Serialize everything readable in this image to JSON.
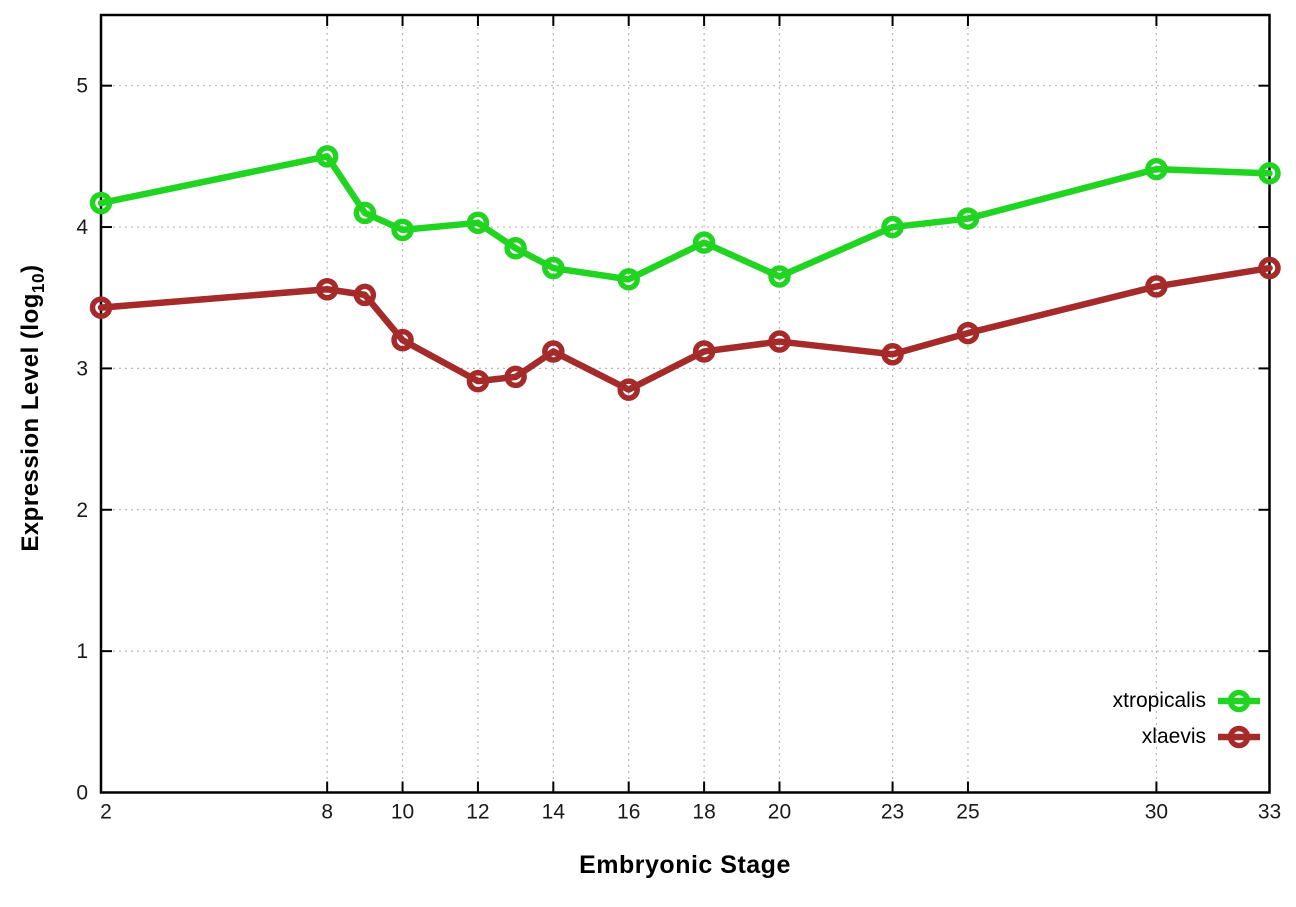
{
  "chart_data": {
    "type": "line",
    "title": "",
    "xlabel": "Embryonic Stage",
    "ylabel": "Expression Level (log10)",
    "ylabel_parts": {
      "pre": "Expression Level (log",
      "sub": "10",
      "post": ")"
    },
    "x": [
      2,
      8,
      9,
      10,
      12,
      13,
      14,
      16,
      18,
      20,
      23,
      25,
      30,
      33
    ],
    "series": [
      {
        "name": "xtropicalis",
        "color": "#22d422",
        "values": [
          4.17,
          4.5,
          4.1,
          3.98,
          4.03,
          3.85,
          3.71,
          3.63,
          3.89,
          3.65,
          4.0,
          4.06,
          4.41,
          4.38
        ]
      },
      {
        "name": "xlaevis",
        "color": "#a52a2a",
        "values": [
          3.43,
          3.56,
          3.52,
          3.2,
          2.91,
          2.94,
          3.12,
          2.85,
          3.12,
          3.19,
          3.1,
          3.25,
          3.58,
          3.71
        ]
      }
    ],
    "xticks": [
      2,
      8,
      10,
      12,
      14,
      16,
      18,
      20,
      23,
      25,
      30,
      33
    ],
    "yticks": [
      0,
      1,
      2,
      3,
      4,
      5
    ],
    "xlim": [
      2,
      33
    ],
    "ylim": [
      0,
      5.5
    ],
    "grid": true,
    "legend_position": "bottom-right",
    "marker": "open-circle",
    "axis_color": "#000000",
    "grid_color": "#b8b8b8",
    "tick_label_color": "#1a1a1a"
  }
}
